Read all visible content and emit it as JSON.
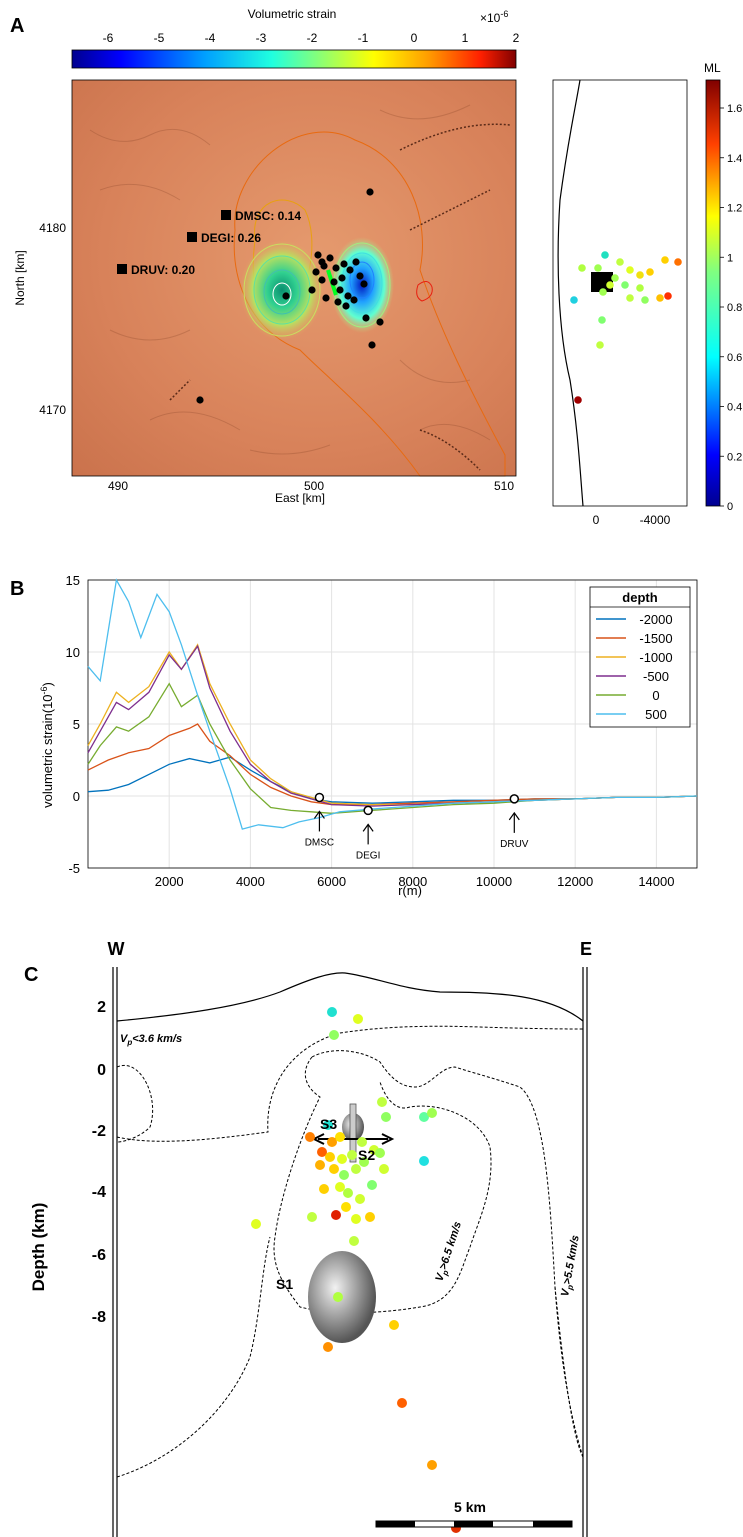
{
  "colors": {
    "strain_colormap": [
      "#00008f",
      "#0020ff",
      "#00a0ff",
      "#20ffdf",
      "#9fff60",
      "#ffff00",
      "#ff9f00",
      "#ff2000",
      "#800000"
    ],
    "terrain": "#d8825a",
    "depth_series": [
      "#0072bd",
      "#d95319",
      "#edb120",
      "#7e2f8e",
      "#77ac30",
      "#4dbeee"
    ]
  },
  "panel_a": {
    "letter": "A",
    "colorbar_title": "Volumetric strain",
    "colorbar_exponent": "×10",
    "colorbar_exponent_power": "-6",
    "colorbar_ticks": [
      "-6",
      "-5",
      "-4",
      "-3",
      "-2",
      "-1",
      "0",
      "1",
      "2"
    ],
    "ylabel": "North [km]",
    "xlabel": "East [km]",
    "x_ticks": [
      "490",
      "500",
      "510"
    ],
    "y_ticks": [
      "4180",
      "4170"
    ],
    "stations": [
      {
        "label": "DMSC: 0.14"
      },
      {
        "label": "DEGI: 0.26"
      },
      {
        "label": "DRUV: 0.20"
      }
    ],
    "side_x_ticks": [
      "0",
      "-4000"
    ],
    "ml_title": "ML",
    "ml_ticks": [
      "1.6",
      "1.4",
      "1.2",
      "1",
      "0.8",
      "0.6",
      "0.4",
      "0.2",
      "0"
    ]
  },
  "panel_b": {
    "letter": "B",
    "markers": [
      "DMSC",
      "DEGI",
      "DRUV"
    ]
  },
  "panel_c": {
    "letter": "C",
    "west": "W",
    "east": "E",
    "ylabel": "Depth (km)",
    "y_ticks": [
      "2",
      "0",
      "-2",
      "-4",
      "-6",
      "-8"
    ],
    "labels": {
      "s1": "S1",
      "s2": "S2",
      "s3": "S3"
    },
    "vp_low": "V",
    "vp_low_sub": "p",
    "vp_low_rest": "<3.6 km/s",
    "vp_high": "V",
    "vp_high_sub": "p",
    "vp_high_rest": ">6.5 km/s",
    "vp_mid": "V",
    "vp_mid_sub": "p",
    "vp_mid_rest": ">5.5 km/s",
    "scalebar": "5 km"
  },
  "chart_data": {
    "type": "line",
    "title": "",
    "xlabel": "r(m)",
    "ylabel": "volumetric strain(10",
    "ylabel_power": "-6",
    "ylabel_close": ")",
    "xlim": [
      0,
      15000
    ],
    "ylim": [
      -5,
      15
    ],
    "x_ticks": [
      2000,
      4000,
      6000,
      8000,
      10000,
      12000,
      14000
    ],
    "y_ticks": [
      15,
      10,
      5,
      0,
      -5
    ],
    "grid": true,
    "legend_title": "depth",
    "legend_placement": "top-right",
    "series": [
      {
        "name": "-2000",
        "color": "#0072bd",
        "x": [
          0,
          500,
          1000,
          1500,
          2000,
          2500,
          3000,
          3500,
          4000,
          4500,
          5000,
          5500,
          6000,
          7000,
          8000,
          9000,
          10000,
          11000,
          12000,
          13000,
          14000,
          15000
        ],
        "y": [
          0.3,
          0.4,
          0.8,
          1.5,
          2.2,
          2.6,
          2.3,
          2.7,
          1.8,
          1.0,
          0.3,
          -0.2,
          -0.4,
          -0.5,
          -0.4,
          -0.3,
          -0.3,
          -0.2,
          -0.2,
          -0.1,
          -0.1,
          0.0
        ]
      },
      {
        "name": "-1500",
        "color": "#d95319",
        "x": [
          0,
          500,
          1000,
          1500,
          2000,
          2500,
          2700,
          3000,
          3500,
          4000,
          4500,
          5000,
          5500,
          6000,
          7000,
          8000,
          9000,
          10000,
          11000,
          12000,
          13000,
          14000,
          15000
        ],
        "y": [
          1.8,
          2.5,
          3.0,
          3.3,
          4.2,
          4.7,
          5.0,
          3.8,
          2.8,
          1.5,
          0.6,
          0.0,
          -0.4,
          -0.6,
          -0.6,
          -0.5,
          -0.4,
          -0.3,
          -0.2,
          -0.2,
          -0.1,
          -0.1,
          0.0
        ]
      },
      {
        "name": "-1000",
        "color": "#edb120",
        "x": [
          0,
          300,
          700,
          1000,
          1500,
          2000,
          2300,
          2700,
          3000,
          3500,
          4000,
          4500,
          5000,
          5500,
          6000,
          7000,
          8000,
          9000,
          10000,
          11000,
          12000,
          13000,
          14000,
          15000
        ],
        "y": [
          3.5,
          5.0,
          7.2,
          6.5,
          7.6,
          10.0,
          8.8,
          10.5,
          7.8,
          5.0,
          2.5,
          1.2,
          0.3,
          -0.1,
          -0.5,
          -0.6,
          -0.6,
          -0.5,
          -0.4,
          -0.3,
          -0.2,
          -0.1,
          -0.1,
          0.0
        ]
      },
      {
        "name": "-500",
        "color": "#7e2f8e",
        "x": [
          0,
          300,
          700,
          1000,
          1500,
          2000,
          2300,
          2700,
          3000,
          3500,
          4000,
          4500,
          5000,
          5500,
          6000,
          7000,
          8000,
          9000,
          10000,
          11000,
          12000,
          13000,
          14000,
          15000
        ],
        "y": [
          3.0,
          4.5,
          6.5,
          6.0,
          7.2,
          9.8,
          8.8,
          10.4,
          7.5,
          4.5,
          2.2,
          1.0,
          0.2,
          -0.2,
          -0.6,
          -0.7,
          -0.6,
          -0.5,
          -0.4,
          -0.3,
          -0.2,
          -0.1,
          -0.1,
          0.0
        ]
      },
      {
        "name": "0",
        "color": "#77ac30",
        "x": [
          0,
          300,
          700,
          1000,
          1500,
          2000,
          2300,
          2700,
          3000,
          3500,
          4000,
          4500,
          5000,
          5500,
          6000,
          7000,
          8000,
          9000,
          10000,
          11000,
          12000,
          13000,
          14000,
          15000
        ],
        "y": [
          2.2,
          3.5,
          4.8,
          4.5,
          5.5,
          7.8,
          6.2,
          7.0,
          5.0,
          2.5,
          0.5,
          -0.8,
          -1.0,
          -1.1,
          -1.2,
          -1.0,
          -0.8,
          -0.6,
          -0.5,
          -0.3,
          -0.2,
          -0.1,
          -0.1,
          0.0
        ]
      },
      {
        "name": "500",
        "color": "#4dbeee",
        "x": [
          0,
          300,
          700,
          1000,
          1300,
          1700,
          2000,
          2300,
          2700,
          3000,
          3500,
          3800,
          4200,
          4800,
          5200,
          5700,
          6200,
          7000,
          8000,
          9000,
          10000,
          11000,
          12000,
          13000,
          14000,
          15000
        ],
        "y": [
          9.0,
          8.0,
          15.0,
          13.5,
          11.0,
          14.0,
          12.8,
          10.5,
          7.0,
          4.5,
          0.5,
          -2.3,
          -2.0,
          -2.2,
          -1.8,
          -1.5,
          -1.1,
          -0.9,
          -0.7,
          -0.5,
          -0.4,
          -0.3,
          -0.2,
          -0.1,
          -0.1,
          0.0
        ]
      }
    ],
    "markers": [
      {
        "label": "DMSC",
        "x": 5700,
        "y": -0.1
      },
      {
        "label": "DEGI",
        "x": 6900,
        "y": -1.0
      },
      {
        "label": "DRUV",
        "x": 10500,
        "y": -0.2
      }
    ]
  }
}
